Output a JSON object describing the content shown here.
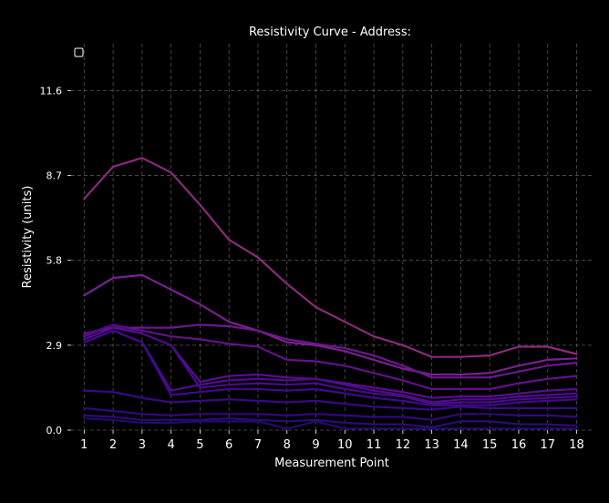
{
  "chart_data": {
    "type": "line",
    "title": "Resistivity Curve - Address:",
    "xlabel": "Measurement Point",
    "ylabel": "Resistivity (units)",
    "x": [
      1,
      2,
      3,
      4,
      5,
      6,
      7,
      8,
      9,
      10,
      11,
      12,
      13,
      14,
      15,
      16,
      17,
      18
    ],
    "x_tick_labels": [
      "1",
      "2",
      "3",
      "4",
      "5",
      "6",
      "7",
      "8",
      "9",
      "10",
      "11",
      "12",
      "13",
      "14",
      "15",
      "16",
      "17",
      "18"
    ],
    "y_ticks": [
      0.0,
      2.9,
      5.8,
      8.7,
      11.6
    ],
    "y_tick_labels": [
      "0.0",
      "2.9",
      "5.8",
      "8.7",
      "11.6"
    ],
    "ylim": [
      0,
      13.2
    ],
    "xlim": [
      0.55,
      18.55
    ],
    "grid": true,
    "legend": "top-left (empty)",
    "background_color": "#000000",
    "series": [
      {
        "color": "#8a2b7a",
        "values": [
          7.9,
          9.0,
          9.3,
          8.8,
          7.7,
          6.5,
          5.9,
          5.0,
          4.2,
          3.7,
          3.2,
          2.9,
          2.5,
          2.5,
          2.55,
          2.85,
          2.85,
          2.6
        ]
      },
      {
        "color": "#7a2090",
        "values": [
          4.6,
          5.2,
          5.3,
          4.8,
          4.3,
          3.7,
          3.4,
          3.0,
          2.9,
          2.7,
          2.4,
          2.1,
          1.9,
          1.9,
          1.95,
          2.2,
          2.4,
          2.45
        ]
      },
      {
        "color": "#6a1890",
        "values": [
          3.3,
          3.5,
          3.5,
          3.5,
          3.6,
          3.55,
          3.4,
          3.1,
          2.95,
          2.8,
          2.55,
          2.2,
          1.8,
          1.8,
          1.8,
          2.0,
          2.2,
          2.3
        ]
      },
      {
        "color": "#64108c",
        "values": [
          3.2,
          3.6,
          3.4,
          3.2,
          3.1,
          2.95,
          2.85,
          2.4,
          2.35,
          2.2,
          1.95,
          1.7,
          1.4,
          1.4,
          1.4,
          1.6,
          1.75,
          1.85
        ]
      },
      {
        "color": "#5a0c92",
        "values": [
          3.1,
          3.5,
          3.3,
          2.9,
          1.65,
          1.85,
          1.9,
          1.8,
          1.75,
          1.6,
          1.45,
          1.3,
          1.1,
          1.15,
          1.15,
          1.25,
          1.35,
          1.4
        ]
      },
      {
        "color": "#520a90",
        "values": [
          3.0,
          3.4,
          3.0,
          1.35,
          1.55,
          1.7,
          1.75,
          1.7,
          1.75,
          1.55,
          1.35,
          1.2,
          0.95,
          1.05,
          1.05,
          1.15,
          1.2,
          1.25
        ]
      },
      {
        "color": "#4a0a8c",
        "values": [
          3.25,
          3.6,
          3.3,
          2.9,
          1.45,
          1.55,
          1.6,
          1.55,
          1.6,
          1.4,
          1.25,
          1.15,
          0.9,
          0.95,
          0.95,
          1.05,
          1.1,
          1.15
        ]
      },
      {
        "color": "#420890",
        "values": [
          3.0,
          3.4,
          3.0,
          1.2,
          1.3,
          1.4,
          1.4,
          1.35,
          1.4,
          1.25,
          1.1,
          1.0,
          0.85,
          0.85,
          0.85,
          0.95,
          1.0,
          1.05
        ]
      },
      {
        "color": "#3a0888",
        "values": [
          1.35,
          1.3,
          1.1,
          0.95,
          1.0,
          1.05,
          1.0,
          0.95,
          1.0,
          0.9,
          0.8,
          0.75,
          0.7,
          0.8,
          0.75,
          0.75,
          0.75,
          0.75
        ]
      },
      {
        "color": "#320880",
        "values": [
          0.75,
          0.65,
          0.55,
          0.5,
          0.55,
          0.55,
          0.55,
          0.5,
          0.55,
          0.5,
          0.45,
          0.45,
          0.35,
          0.55,
          0.55,
          0.5,
          0.5,
          0.45
        ]
      },
      {
        "color": "#2c0a78",
        "values": [
          0.5,
          0.45,
          0.35,
          0.35,
          0.35,
          0.4,
          0.35,
          0.3,
          0.35,
          0.25,
          0.2,
          0.2,
          0.1,
          0.3,
          0.3,
          0.2,
          0.2,
          0.15
        ]
      },
      {
        "color": "#220a70",
        "values": [
          0.4,
          0.35,
          0.25,
          0.25,
          0.3,
          0.3,
          0.3,
          0.05,
          0.3,
          0.05,
          0.05,
          0.05,
          0.05,
          0.05,
          0.05,
          0.05,
          0.05,
          0.05
        ]
      }
    ]
  }
}
